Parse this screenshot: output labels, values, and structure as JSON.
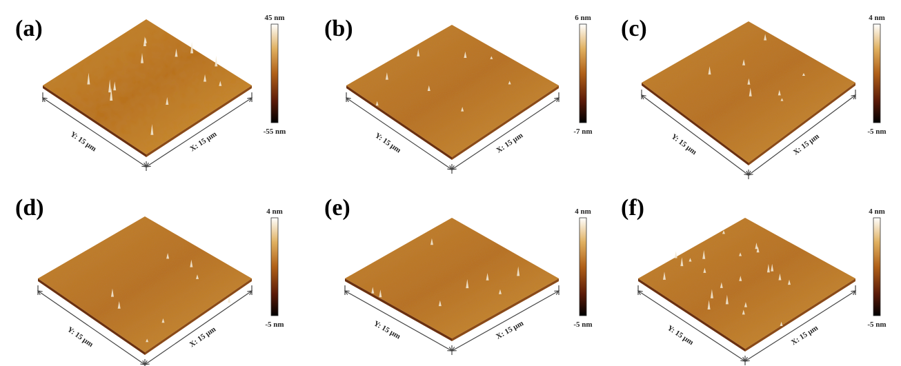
{
  "panels": [
    {
      "label": "(a)",
      "x_axis": "X:  15 μm",
      "y_axis": "Y:  15 μm",
      "scale_max": "45 nm",
      "scale_min": "-55 nm"
    },
    {
      "label": "(b)",
      "x_axis": "X:  15 μm",
      "y_axis": "Y:  15 μm",
      "scale_max": "6 nm",
      "scale_min": "-7 nm"
    },
    {
      "label": "(c)",
      "x_axis": "X:  15 μm",
      "y_axis": "Y:  15 μm",
      "scale_max": "4 nm",
      "scale_min": "-5 nm"
    },
    {
      "label": "(d)",
      "x_axis": "X:  15 μm",
      "y_axis": "Y:  15 μm",
      "scale_max": "4 nm",
      "scale_min": "-5 nm"
    },
    {
      "label": "(e)",
      "x_axis": "X:  15 μm",
      "y_axis": "Y:  15 μm",
      "scale_max": "4 nm",
      "scale_min": "-5 nm"
    },
    {
      "label": "(f)",
      "x_axis": "X:  15 μm",
      "y_axis": "Y:  15 μm",
      "scale_max": "4 nm",
      "scale_min": "-5 nm"
    }
  ],
  "colors": {
    "surface_light": "#d49a3a",
    "surface_mid": "#b8701e",
    "surface_dark": "#7a3a10",
    "peak": "#f2e8d4",
    "colorbar_top": "#ffffff",
    "colorbar_upper": "#e0b060",
    "colorbar_mid": "#b06018",
    "colorbar_low": "#5a1a08",
    "colorbar_bottom": "#000000"
  }
}
